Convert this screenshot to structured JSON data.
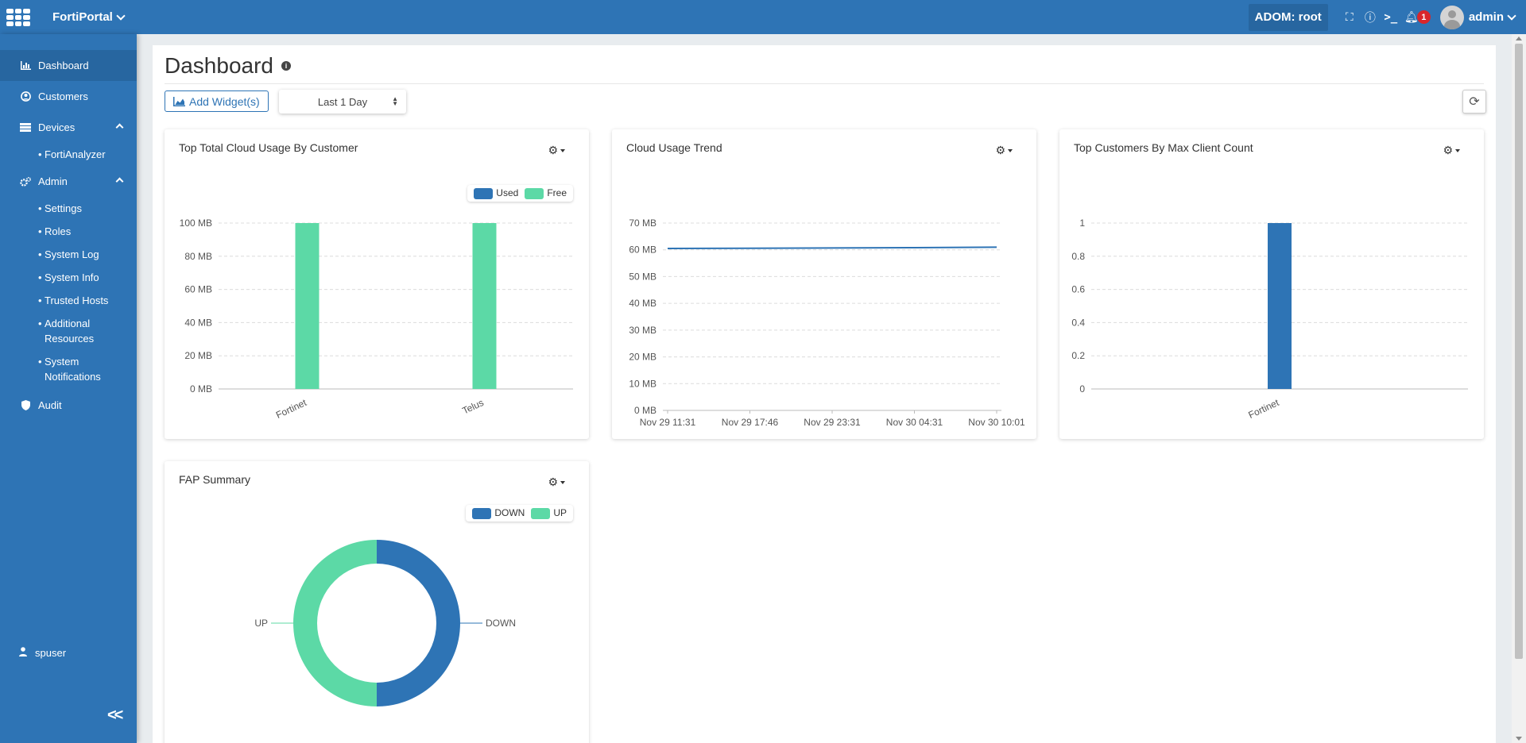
{
  "topbar": {
    "brand": "FortiPortal",
    "adom": "ADOM: root",
    "notification_count": "1",
    "user": "admin"
  },
  "sidebar": {
    "items": [
      {
        "label": "Dashboard",
        "icon": "bar-chart-icon"
      },
      {
        "label": "Customers",
        "icon": "user-circle-icon"
      },
      {
        "label": "Devices",
        "icon": "server-icon"
      },
      {
        "label": "Admin",
        "icon": "gears-icon"
      },
      {
        "label": "Audit",
        "icon": "shield-icon"
      }
    ],
    "devices_sub": [
      "FortiAnalyzer"
    ],
    "admin_sub": [
      "Settings",
      "Roles",
      "System Log",
      "System Info",
      "Trusted Hosts",
      "Additional Resources",
      "System Notifications"
    ],
    "footer_user": "spuser"
  },
  "page": {
    "title": "Dashboard",
    "add_widget": "Add Widget(s)",
    "time_range": "Last 1 Day"
  },
  "widgets": {
    "usage": {
      "title": "Top Total Cloud Usage By Customer"
    },
    "trend": {
      "title": "Cloud Usage Trend"
    },
    "clients": {
      "title": "Top Customers By Max Client Count"
    },
    "fap": {
      "title": "FAP Summary"
    }
  },
  "chart_data": [
    {
      "type": "bar",
      "title": "Top Total Cloud Usage By Customer",
      "categories": [
        "Fortinet",
        "Telus"
      ],
      "series": [
        {
          "name": "Used",
          "color": "#2e74b5",
          "values": [
            0,
            0
          ]
        },
        {
          "name": "Free",
          "color": "#5cd9a6",
          "values": [
            100,
            100
          ]
        }
      ],
      "ylim": [
        0,
        100
      ],
      "yticks": [
        "0 MB",
        "20 MB",
        "40 MB",
        "60 MB",
        "80 MB",
        "100 MB"
      ],
      "legend": "top-right",
      "grid": true
    },
    {
      "type": "line",
      "title": "Cloud Usage Trend",
      "x": [
        "Nov 29 11:31",
        "Nov 29 17:46",
        "Nov 29 23:31",
        "Nov 30 04:31",
        "Nov 30 10:01"
      ],
      "series": [
        {
          "color": "#2e74b5",
          "values": [
            60.5,
            60.6,
            60.7,
            60.8,
            61
          ]
        }
      ],
      "ylim": [
        0,
        70
      ],
      "yticks": [
        "0 MB",
        "10 MB",
        "20 MB",
        "30 MB",
        "40 MB",
        "50 MB",
        "60 MB",
        "70 MB"
      ],
      "grid": true
    },
    {
      "type": "bar",
      "title": "Top Customers By Max Client Count",
      "categories": [
        "Fortinet"
      ],
      "series": [
        {
          "color": "#2e74b5",
          "values": [
            1
          ]
        }
      ],
      "ylim": [
        0,
        1
      ],
      "yticks": [
        "0",
        "0.2",
        "0.4",
        "0.6",
        "0.8",
        "1"
      ],
      "grid": true
    },
    {
      "type": "pie",
      "title": "FAP Summary",
      "series": [
        {
          "name": "DOWN",
          "color": "#2e74b5",
          "value": 50
        },
        {
          "name": "UP",
          "color": "#5cd9a6",
          "value": 50
        }
      ],
      "legend": "top-right",
      "donut": true
    }
  ]
}
